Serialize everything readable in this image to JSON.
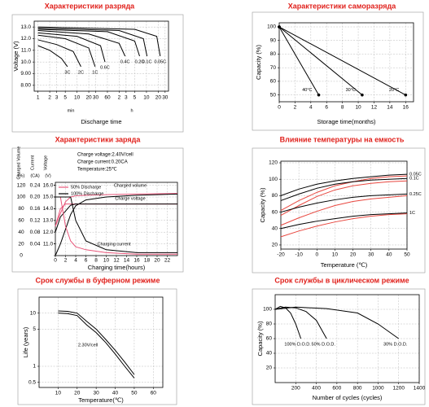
{
  "chart_data": [
    {
      "type": "line",
      "title": "Характеристики разряда",
      "xlabel": "Discharge time",
      "ylabel": "Voltage (V)",
      "xscale": "log",
      "xlim": [
        0.8,
        2200
      ],
      "ylim": [
        7.5,
        13.5
      ],
      "grid": true,
      "xticks": [
        1,
        2,
        3,
        5,
        10,
        20,
        30,
        60,
        {
          "value": 120,
          "label": "2"
        },
        {
          "value": 180,
          "label": "3"
        },
        {
          "value": 300,
          "label": "5"
        },
        {
          "value": 600,
          "label": "10"
        },
        {
          "value": 1200,
          "label": "20"
        },
        {
          "value": 1800,
          "label": "30"
        }
      ],
      "yticks": [
        {
          "value": 13,
          "label": "13.0"
        },
        {
          "value": 12,
          "label": "12.0"
        },
        {
          "value": 11,
          "label": "11.0"
        },
        {
          "value": 10,
          "label": "10.0"
        },
        {
          "value": 9,
          "label": "9.00"
        },
        {
          "value": 8,
          "label": "8.00"
        }
      ],
      "annotations": [
        "min",
        "h"
      ],
      "series": [
        {
          "name": "3C",
          "color": "#000000",
          "x": [
            1,
            2,
            4,
            5.7
          ],
          "values": [
            11.4,
            11.0,
            10.3,
            9.6
          ]
        },
        {
          "name": "2C",
          "color": "#000000",
          "x": [
            1,
            3,
            8,
            12.6
          ],
          "values": [
            11.9,
            11.5,
            10.9,
            9.6
          ]
        },
        {
          "name": "1C",
          "color": "#000000",
          "x": [
            1,
            5,
            20,
            29
          ],
          "values": [
            12.3,
            12.0,
            11.2,
            9.6
          ]
        },
        {
          "name": "0.6C",
          "color": "#000000",
          "x": [
            1,
            10,
            40,
            52
          ],
          "values": [
            12.5,
            12.2,
            11.4,
            10.0
          ]
        },
        {
          "name": "0.4C",
          "color": "#000000",
          "x": [
            1,
            20,
            120,
            170
          ],
          "values": [
            12.7,
            12.4,
            11.6,
            10.5
          ]
        },
        {
          "name": "0.2C",
          "color": "#000000",
          "x": [
            1,
            60,
            300,
            400
          ],
          "values": [
            12.8,
            12.6,
            11.8,
            10.5
          ]
        },
        {
          "name": "0.1C",
          "color": "#000000",
          "x": [
            1,
            120,
            500,
            620
          ],
          "values": [
            12.9,
            12.7,
            12.0,
            10.5
          ]
        },
        {
          "name": "0.05C",
          "color": "#000000",
          "x": [
            1,
            300,
            1100,
            1350
          ],
          "values": [
            13.0,
            12.8,
            12.2,
            10.5
          ]
        }
      ]
    },
    {
      "type": "line",
      "title": "Характеристики саморазряда",
      "xlabel": "Storage time(months)",
      "ylabel": "Capacity (%)",
      "xlim": [
        0,
        17
      ],
      "ylim": [
        45,
        103
      ],
      "grid": true,
      "markers": true,
      "xticks": [
        0,
        2,
        4,
        6,
        8,
        10,
        12,
        14,
        16
      ],
      "yticks": [
        50,
        60,
        70,
        80,
        90,
        100
      ],
      "series": [
        {
          "name": "40°C",
          "color": "#000000",
          "x": [
            0,
            5
          ],
          "values": [
            100,
            50
          ]
        },
        {
          "name": "30°C",
          "color": "#000000",
          "x": [
            0,
            10.5
          ],
          "values": [
            100,
            50
          ]
        },
        {
          "name": "20°C",
          "color": "#000000",
          "x": [
            0,
            16
          ],
          "values": [
            100,
            50
          ]
        }
      ]
    },
    {
      "type": "line",
      "title": "Характеристики заряда",
      "xlabel": "Charging time(hours)",
      "ylabel": "Charged Volume",
      "yunit": "(%)",
      "y2label": "Current",
      "y2unit": "(CA)",
      "y3label": "Voltage",
      "y3unit": "(V)",
      "xlim": [
        0,
        24
      ],
      "ylim": [
        0,
        125
      ],
      "y2lim": [
        0,
        0.25
      ],
      "y3lim": [
        10,
        16.25
      ],
      "grid": true,
      "legend": true,
      "xticks": [
        0,
        2,
        4,
        6,
        8,
        10,
        12,
        14,
        16,
        18,
        20,
        22
      ],
      "yticks": [
        0,
        20,
        40,
        60,
        80,
        100,
        120
      ],
      "y2ticks": [
        0.04,
        0.08,
        0.12,
        0.16,
        {
          "value": 0.2,
          "label": "0.20"
        },
        0.24
      ],
      "y3ticks": [
        {
          "value": 11,
          "label": "11.0"
        },
        {
          "value": 12,
          "label": "12.0"
        },
        {
          "value": 13,
          "label": "13.0"
        },
        {
          "value": 14,
          "label": "14.0"
        },
        {
          "value": 15,
          "label": "15.0"
        },
        {
          "value": 16,
          "label": "16.0"
        }
      ],
      "notes": [
        "Charge voltage:2.40V/cell",
        "Charge current:0.20CA",
        "Temperature:25℃"
      ],
      "annotations": [
        "Charged volume",
        "Charge voltage",
        "Charging current"
      ],
      "x": [
        0,
        1,
        2,
        3,
        4,
        6,
        10,
        16,
        24
      ],
      "series": [
        {
          "name": "50% Discharge",
          "color": "#e8567a",
          "values": [
            50,
            72,
            92,
            100,
            102,
            103,
            104,
            105,
            106
          ]
        },
        {
          "name": "100% Discharge",
          "color": "#000000",
          "values": [
            0,
            20,
            45,
            70,
            85,
            95,
            100,
            103,
            105
          ]
        },
        {
          "color": "#e8567a",
          "axis": "y3",
          "values": [
            12.5,
            14.0,
            14.4,
            14.4,
            14.4,
            14.4,
            14.4,
            14.4,
            14.4
          ]
        },
        {
          "color": "#000000",
          "axis": "y3",
          "values": [
            12.0,
            13.3,
            13.8,
            14.3,
            14.4,
            14.4,
            14.4,
            14.4,
            14.4
          ]
        },
        {
          "color": "#e8567a",
          "axis": "y2",
          "values": [
            0.2,
            0.2,
            0.1,
            0.05,
            0.03,
            0.02,
            0.01,
            0.005,
            0.005
          ]
        },
        {
          "color": "#000000",
          "axis": "y2",
          "values": [
            0.2,
            0.2,
            0.2,
            0.2,
            0.12,
            0.05,
            0.02,
            0.01,
            0.01
          ]
        }
      ]
    },
    {
      "type": "line",
      "title": "Влияние температуры на емкость",
      "xlabel": "Temperature (℃)",
      "ylabel": "Capacity (%)",
      "xlim": [
        -20,
        50
      ],
      "ylim": [
        15,
        122
      ],
      "grid": true,
      "xticks": [
        -20,
        -10,
        0,
        10,
        20,
        30,
        40,
        50
      ],
      "yticks": [
        20,
        40,
        60,
        80,
        100,
        120
      ],
      "x": [
        -20,
        -10,
        0,
        10,
        20,
        30,
        40,
        50
      ],
      "series": [
        {
          "color": "#e8473f",
          "values": [
            62,
            74,
            84,
            92,
            97,
            101,
            103,
            104
          ]
        },
        {
          "color": "#e8473f",
          "values": [
            56,
            68,
            79,
            87,
            92,
            95,
            97,
            98
          ]
        },
        {
          "color": "#e8473f",
          "values": [
            44,
            53,
            61,
            68,
            73,
            76,
            78,
            80
          ]
        },
        {
          "color": "#e8473f",
          "values": [
            30,
            37,
            43,
            48,
            52,
            55,
            57,
            58
          ]
        },
        {
          "name": "0.05C",
          "color": "#000000",
          "values": [
            80,
            88,
            94,
            98,
            101,
            103,
            105,
            106
          ]
        },
        {
          "name": "0.1C",
          "color": "#000000",
          "values": [
            74,
            82,
            89,
            94,
            97,
            99,
            100,
            101
          ]
        },
        {
          "name": "0.25C",
          "color": "#000000",
          "values": [
            60,
            66,
            71,
            75,
            78,
            80,
            81,
            82
          ]
        },
        {
          "name": "1C",
          "color": "#000000",
          "values": [
            40,
            45,
            49,
            52,
            55,
            57,
            58,
            59
          ]
        }
      ]
    },
    {
      "type": "line",
      "title": "Срок службы в буферном режиме",
      "xlabel": "Temperature(℃)",
      "ylabel": "Life (years)",
      "yscale": "log",
      "xlim": [
        0,
        65
      ],
      "ylim": [
        0.4,
        20
      ],
      "grid": true,
      "xticks": [
        10,
        20,
        30,
        40,
        50,
        60
      ],
      "yticks": [
        0.5,
        1,
        5,
        10
      ],
      "annotations": [
        "2.30V/cell"
      ],
      "x": [
        10,
        15,
        20,
        25,
        30,
        35,
        40,
        45,
        50
      ],
      "series": [
        {
          "color": "#000000",
          "values": [
            11,
            10.8,
            10,
            7,
            5,
            3.2,
            2,
            1.2,
            0.7
          ]
        },
        {
          "color": "#000000",
          "values": [
            10,
            9.8,
            9,
            6,
            4.3,
            2.8,
            1.7,
            1.0,
            0.6
          ]
        }
      ]
    },
    {
      "type": "line",
      "title": "Срок службы в циклическом режиме",
      "xlabel": "Number of cycles (cycles)",
      "ylabel": "Capacity (%)",
      "xlim": [
        0,
        1400
      ],
      "ylim": [
        0,
        120
      ],
      "grid": true,
      "xticks": [
        200,
        400,
        600,
        800,
        1000,
        1200,
        1400
      ],
      "yticks": [
        20,
        40,
        60,
        80,
        100
      ],
      "series": [
        {
          "name": "100% D.O.D.",
          "color": "#000000",
          "x": [
            0,
            50,
            100,
            150,
            200,
            250
          ],
          "values": [
            100,
            104,
            102,
            95,
            80,
            60
          ]
        },
        {
          "name": "50% D.O.D.",
          "color": "#000000",
          "x": [
            0,
            100,
            200,
            300,
            400,
            500
          ],
          "values": [
            100,
            103,
            102,
            97,
            85,
            60
          ]
        },
        {
          "name": "30% D.O.D.",
          "color": "#000000",
          "x": [
            0,
            200,
            500,
            800,
            1000,
            1200
          ],
          "values": [
            100,
            103,
            101,
            95,
            80,
            60
          ]
        }
      ]
    }
  ]
}
